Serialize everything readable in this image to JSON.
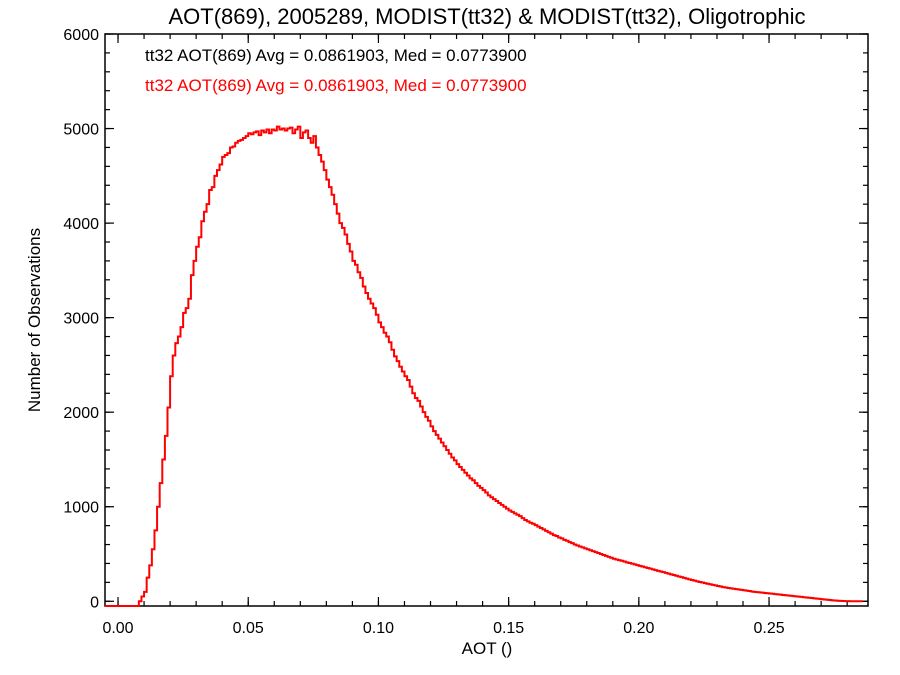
{
  "chart_data": {
    "type": "line",
    "title": "AOT(869), 2005289, MODIST(tt32) & MODIST(tt32), Oligotrophic",
    "xlabel": "AOT ()",
    "ylabel": "Number of Observations",
    "xlim": [
      -0.005,
      0.288
    ],
    "ylim": [
      -50,
      6000
    ],
    "xticks": [
      0.0,
      0.05,
      0.1,
      0.15,
      0.2,
      0.25
    ],
    "xtick_labels": [
      "0.00",
      "0.05",
      "0.10",
      "0.15",
      "0.20",
      "0.25"
    ],
    "yticks": [
      0,
      1000,
      2000,
      3000,
      4000,
      5000,
      6000
    ],
    "ytick_labels": [
      "0",
      "1000",
      "2000",
      "3000",
      "4000",
      "5000",
      "6000"
    ],
    "grid": false,
    "annotations": [
      {
        "text": "tt32 AOT(869) Avg = 0.0861903, Med = 0.0773900",
        "color": "#000000"
      },
      {
        "text": "tt32 AOT(869) Avg = 0.0861903, Med = 0.0773900",
        "color": "#ff0000"
      }
    ],
    "bin_width": 0.001,
    "x_start": -0.005,
    "series": [
      {
        "color": "#ff0000",
        "values": [
          -50,
          -50,
          -50,
          -50,
          -50,
          -50,
          -50,
          -50,
          -50,
          -50,
          -50,
          -50,
          -50,
          0,
          50,
          100,
          250,
          380,
          550,
          750,
          1000,
          1250,
          1500,
          1750,
          2050,
          2380,
          2600,
          2730,
          2800,
          2900,
          3050,
          3100,
          3200,
          3450,
          3600,
          3750,
          3850,
          4020,
          4120,
          4200,
          4350,
          4380,
          4500,
          4560,
          4620,
          4700,
          4720,
          4740,
          4800,
          4810,
          4850,
          4870,
          4880,
          4900,
          4920,
          4950,
          4940,
          4960,
          4970,
          4930,
          4980,
          4960,
          4990,
          4950,
          4990,
          4980,
          5020,
          4990,
          5000,
          4980,
          5000,
          5010,
          4950,
          4990,
          5020,
          4900,
          4960,
          4980,
          4900,
          4850,
          4920,
          4800,
          4720,
          4650,
          4560,
          4460,
          4380,
          4300,
          4200,
          4100,
          4000,
          3950,
          3880,
          3780,
          3700,
          3600,
          3560,
          3480,
          3420,
          3330,
          3260,
          3200,
          3150,
          3100,
          3030,
          2950,
          2900,
          2840,
          2800,
          2740,
          2660,
          2590,
          2540,
          2480,
          2430,
          2380,
          2340,
          2270,
          2200,
          2150,
          2120,
          2060,
          2000,
          1950,
          1910,
          1850,
          1800,
          1760,
          1720,
          1680,
          1640,
          1600,
          1560,
          1520,
          1490,
          1450,
          1420,
          1390,
          1360,
          1330,
          1300,
          1280,
          1250,
          1220,
          1200,
          1175,
          1150,
          1120,
          1100,
          1080,
          1060,
          1040,
          1020,
          1000,
          980,
          960,
          945,
          930,
          915,
          900,
          880,
          860,
          845,
          830,
          820,
          805,
          790,
          775,
          760,
          745,
          730,
          715,
          700,
          690,
          675,
          665,
          650,
          640,
          625,
          615,
          600,
          590,
          580,
          570,
          560,
          550,
          540,
          530,
          520,
          510,
          500,
          490,
          480,
          470,
          460,
          450,
          442,
          435,
          428,
          420,
          412,
          405,
          398,
          390,
          382,
          375,
          368,
          360,
          352,
          345,
          338,
          330,
          322,
          315,
          308,
          300,
          292,
          285,
          278,
          270,
          262,
          255,
          248,
          240,
          232,
          225,
          218,
          210,
          204,
          198,
          192,
          186,
          180,
          174,
          168,
          162,
          156,
          150,
          145,
          140,
          136,
          132,
          128,
          124,
          120,
          116,
          112,
          108,
          104,
          100,
          97,
          94,
          91,
          88,
          85,
          82,
          79,
          76,
          73,
          70,
          67,
          64,
          61,
          58,
          55,
          52,
          49,
          46,
          43,
          40,
          37,
          34,
          31,
          28,
          25,
          22,
          19,
          16,
          13,
          10,
          8,
          6,
          4,
          3,
          2,
          1,
          0,
          0,
          0,
          0,
          0
        ]
      }
    ]
  }
}
